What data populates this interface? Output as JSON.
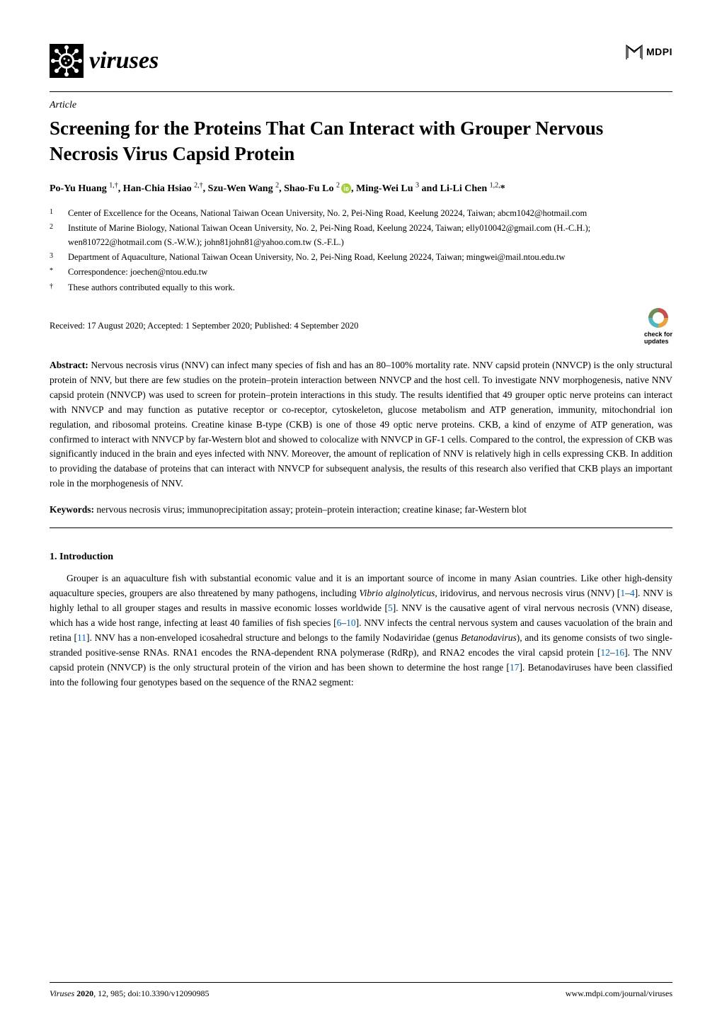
{
  "journal": {
    "name": "viruses",
    "publisher": "MDPI"
  },
  "article": {
    "type": "Article",
    "title": "Screening for the Proteins That Can Interact with Grouper Nervous Necrosis Virus Capsid Protein",
    "authors_html": "Po-Yu Huang <sup>1,†</sup>, Han-Chia Hsiao <sup>2,†</sup>, Szu-Wen Wang <sup>2</sup>, Shao-Fu Lo <sup>2</sup>",
    "authors_html2": ", Ming-Wei Lu <sup>3</sup> and Li-Li Chen <sup>1,2,</sup>*",
    "affiliations": [
      {
        "num": "1",
        "text": "Center of Excellence for the Oceans, National Taiwan Ocean University, No. 2, Pei-Ning Road, Keelung 20224, Taiwan; abcm1042@hotmail.com"
      },
      {
        "num": "2",
        "text": "Institute of Marine Biology, National Taiwan Ocean University, No. 2, Pei-Ning Road, Keelung 20224, Taiwan; elly010042@gmail.com (H.-C.H.); wen810722@hotmail.com (S.-W.W.); john81john81@yahoo.com.tw (S.-F.L.)"
      },
      {
        "num": "3",
        "text": "Department of Aquaculture, National Taiwan Ocean University, No. 2, Pei-Ning Road, Keelung 20224, Taiwan; mingwei@mail.ntou.edu.tw"
      },
      {
        "num": "*",
        "text": "Correspondence: joechen@ntou.edu.tw"
      },
      {
        "num": "†",
        "text": "These authors contributed equally to this work."
      }
    ],
    "dates": "Received: 17 August 2020; Accepted: 1 September 2020; Published: 4 September 2020",
    "check_updates_label": "check for",
    "check_updates_label2": "updates",
    "abstract_label": "Abstract:",
    "abstract": " Nervous necrosis virus (NNV) can infect many species of fish and has an 80–100% mortality rate. NNV capsid protein (NNVCP) is the only structural protein of NNV, but there are few studies on the protein–protein interaction between NNVCP and the host cell. To investigate NNV morphogenesis, native NNV capsid protein (NNVCP) was used to screen for protein–protein interactions in this study. The results identified that 49 grouper optic nerve proteins can interact with NNVCP and may function as putative receptor or co-receptor, cytoskeleton, glucose metabolism and ATP generation, immunity, mitochondrial ion regulation, and ribosomal proteins. Creatine kinase B-type (CKB) is one of those 49 optic nerve proteins. CKB, a kind of enzyme of ATP generation, was confirmed to interact with NNVCP by far-Western blot and showed to colocalize with NNVCP in GF-1 cells. Compared to the control, the expression of CKB was significantly induced in the brain and eyes infected with NNV. Moreover, the amount of replication of NNV is relatively high in cells expressing CKB. In addition to providing the database of proteins that can interact with NNVCP for subsequent analysis, the results of this research also verified that CKB plays an important role in the morphogenesis of NNV.",
    "keywords_label": "Keywords:",
    "keywords": " nervous necrosis virus; immunoprecipitation assay; protein–protein interaction; creatine kinase; far-Western blot",
    "section1_heading": "1. Introduction",
    "intro_p1": "Grouper is an aquaculture fish with substantial economic value and it is an important source of income in many Asian countries. Like other high-density aquaculture species, groupers are also threatened by many pathogens, including ",
    "intro_p1_ital": "Vibrio alginolyticus",
    "intro_p1b": ", iridovirus, and nervous necrosis virus (NNV) [",
    "ref1": "1",
    "dash1": "–",
    "ref4": "4",
    "intro_p1c": "]. NNV is highly lethal to all grouper stages and results in massive economic losses worldwide [",
    "ref5": "5",
    "intro_p1d": "]. NNV is the causative agent of viral nervous necrosis (VNN) disease, which has a wide host range, infecting at least 40 families of fish species [",
    "ref6": "6",
    "dash2": "–",
    "ref10": "10",
    "intro_p1e": "]. NNV infects the central nervous system and causes vacuolation of the brain and retina [",
    "ref11": "11",
    "intro_p1f": "]. NNV has a non-enveloped icosahedral structure and belongs to the family Nodaviridae (genus ",
    "intro_p1_ital2": "Betanodavirus",
    "intro_p1g": "), and its genome consists of two single-stranded positive-sense RNAs. RNA1 encodes the RNA-dependent RNA polymerase (RdRp), and RNA2 encodes the viral capsid protein [",
    "ref12": "12",
    "dash3": "–",
    "ref16": "16",
    "intro_p1h": "]. The NNV capsid protein (NNVCP) is the only structural protein of the virion and has been shown to determine the host range [",
    "ref17": "17",
    "intro_p1i": "]. Betanodaviruses have been classified into the following four genotypes based on the sequence of the RNA2 segment:"
  },
  "footer": {
    "left_ital": "Viruses ",
    "left_bold": "2020",
    "left_rest": ", 12, 985; doi:10.3390/v12090985",
    "right": "www.mdpi.com/journal/viruses"
  },
  "colors": {
    "text": "#000000",
    "link": "#0066cc",
    "orcid_green": "#a6ce39",
    "check_cyan": "#4db8c4",
    "check_orange": "#e8a33d",
    "check_red": "#c94f4f"
  }
}
